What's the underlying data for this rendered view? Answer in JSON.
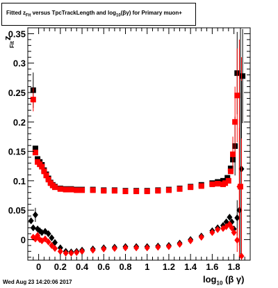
{
  "chart_data": {
    "type": "scatter",
    "title": {
      "prefix": "Fitted  z",
      "prefix_sub": "Fit",
      "middle": " versus TpcTrackLength and log",
      "middle_sub": "10",
      "suffix": "(βγ) for Primary muon+"
    },
    "xlabel": {
      "main": "log",
      "sub": "10",
      "rest": "(β γ)"
    },
    "ylabel": {
      "main": "z",
      "sub": "Fit"
    },
    "xlim": [
      -0.1,
      1.95
    ],
    "ylim": [
      -0.035,
      0.36
    ],
    "x_ticks": [
      "0",
      "0.2",
      "0.4",
      "0.6",
      "0.8",
      "1",
      "1.2",
      "1.4",
      "1.6",
      "1.8"
    ],
    "x_tick_values": [
      0,
      0.2,
      0.4,
      0.6,
      0.8,
      1.0,
      1.2,
      1.4,
      1.6,
      1.8
    ],
    "y_ticks": [
      "0",
      "0.05",
      "0.1",
      "0.15",
      "0.2",
      "0.25",
      "0.3",
      "0.35"
    ],
    "y_tick_values": [
      0,
      0.05,
      0.1,
      0.15,
      0.2,
      0.25,
      0.3,
      0.35
    ],
    "grid": false,
    "legend": "none",
    "series": [
      {
        "color": "#000000",
        "marker": "square",
        "points": [
          [
            -0.05,
            0.254
          ],
          [
            -0.03,
            0.155
          ],
          [
            -0.01,
            0.137
          ],
          [
            0.01,
            0.132
          ],
          [
            0.03,
            0.127
          ],
          [
            0.05,
            0.118
          ],
          [
            0.07,
            0.111
          ],
          [
            0.09,
            0.104
          ],
          [
            0.11,
            0.097
          ],
          [
            0.13,
            0.093
          ],
          [
            0.15,
            0.09
          ],
          [
            0.2,
            0.087
          ],
          [
            0.25,
            0.086
          ],
          [
            0.3,
            0.086
          ],
          [
            0.35,
            0.085
          ],
          [
            0.4,
            0.085
          ],
          [
            0.5,
            0.085
          ],
          [
            0.6,
            0.084
          ],
          [
            0.7,
            0.084
          ],
          [
            0.8,
            0.083
          ],
          [
            0.9,
            0.083
          ],
          [
            1.0,
            0.083
          ],
          [
            1.1,
            0.084
          ],
          [
            1.2,
            0.085
          ],
          [
            1.3,
            0.087
          ],
          [
            1.4,
            0.09
          ],
          [
            1.5,
            0.093
          ],
          [
            1.6,
            0.096
          ],
          [
            1.65,
            0.098
          ],
          [
            1.7,
            0.1
          ],
          [
            1.74,
            0.105
          ],
          [
            1.77,
            0.121
          ],
          [
            1.79,
            0.136
          ],
          [
            1.81,
            0.159
          ],
          [
            1.83,
            0.283
          ],
          [
            1.88,
            0.278
          ]
        ],
        "errors": [
          [
            -0.05,
            0.254,
            0.03
          ],
          [
            1.81,
            0.159,
            0.05
          ],
          [
            1.83,
            0.283,
            0.07
          ],
          [
            1.86,
            0.17,
            0.2
          ],
          [
            1.88,
            0.278,
            0.08
          ]
        ]
      },
      {
        "color": "#ff0000",
        "marker": "square",
        "points": [
          [
            -0.05,
            0.238
          ],
          [
            -0.03,
            0.148
          ],
          [
            -0.01,
            0.132
          ],
          [
            0.01,
            0.128
          ],
          [
            0.03,
            0.124
          ],
          [
            0.05,
            0.116
          ],
          [
            0.07,
            0.109
          ],
          [
            0.09,
            0.102
          ],
          [
            0.11,
            0.096
          ],
          [
            0.13,
            0.092
          ],
          [
            0.15,
            0.089
          ],
          [
            0.2,
            0.086
          ],
          [
            0.25,
            0.085
          ],
          [
            0.3,
            0.085
          ],
          [
            0.35,
            0.084
          ],
          [
            0.4,
            0.084
          ],
          [
            0.5,
            0.084
          ],
          [
            0.6,
            0.083
          ],
          [
            0.7,
            0.083
          ],
          [
            0.8,
            0.082
          ],
          [
            0.9,
            0.082
          ],
          [
            1.0,
            0.082
          ],
          [
            1.1,
            0.083
          ],
          [
            1.2,
            0.084
          ],
          [
            1.3,
            0.086
          ],
          [
            1.4,
            0.089
          ],
          [
            1.5,
            0.091
          ],
          [
            1.6,
            0.094
          ],
          [
            1.65,
            0.095
          ],
          [
            1.7,
            0.094
          ],
          [
            1.72,
            0.096
          ],
          [
            1.75,
            0.1
          ],
          [
            1.77,
            0.116
          ],
          [
            1.79,
            0.145
          ],
          [
            1.81,
            0.2
          ],
          [
            1.83,
            0.245
          ],
          [
            1.86,
            0.09
          ]
        ],
        "errors": [
          [
            -0.05,
            0.238,
            0.02
          ],
          [
            1.79,
            0.145,
            0.03
          ],
          [
            1.81,
            0.2,
            0.06
          ],
          [
            1.83,
            0.245,
            0.08
          ],
          [
            1.85,
            0.12,
            0.22
          ],
          [
            1.87,
            0.06,
            0.25
          ]
        ]
      },
      {
        "color": "#000000",
        "marker": "diamond",
        "points": [
          [
            -0.07,
            0.032
          ],
          [
            -0.05,
            0.02
          ],
          [
            -0.03,
            0.042
          ],
          [
            -0.01,
            0.018
          ],
          [
            0.01,
            0.015
          ],
          [
            0.03,
            0.012
          ],
          [
            0.06,
            0.014
          ],
          [
            0.09,
            0.01
          ],
          [
            0.12,
            0.003
          ],
          [
            0.15,
            -0.005
          ],
          [
            0.2,
            -0.014
          ],
          [
            0.25,
            -0.02
          ],
          [
            0.3,
            -0.021
          ],
          [
            0.35,
            -0.02
          ],
          [
            0.4,
            -0.018
          ],
          [
            0.5,
            -0.016
          ],
          [
            0.6,
            -0.014
          ],
          [
            0.7,
            -0.013
          ],
          [
            0.8,
            -0.012
          ],
          [
            0.9,
            -0.012
          ],
          [
            1.0,
            -0.012
          ],
          [
            1.1,
            -0.011
          ],
          [
            1.2,
            -0.01
          ],
          [
            1.3,
            -0.006
          ],
          [
            1.4,
            0.0
          ],
          [
            1.5,
            0.006
          ],
          [
            1.6,
            0.015
          ],
          [
            1.65,
            0.02
          ],
          [
            1.7,
            0.024
          ],
          [
            1.73,
            0.03
          ],
          [
            1.76,
            0.038
          ],
          [
            1.78,
            0.03
          ],
          [
            1.8,
            0.018
          ],
          [
            1.83,
            0.037
          ],
          [
            1.85,
            0.05
          ],
          [
            1.87,
            0.12
          ]
        ],
        "errors": [
          [
            -0.03,
            0.042,
            0.012
          ],
          [
            1.83,
            0.037,
            0.03
          ],
          [
            1.87,
            0.12,
            0.15
          ]
        ]
      },
      {
        "color": "#ff0000",
        "marker": "diamond",
        "points": [
          [
            -0.05,
            0.004
          ],
          [
            -0.03,
            0.001
          ],
          [
            -0.01,
            0.007
          ],
          [
            0.01,
            0.0
          ],
          [
            0.03,
            -0.002
          ],
          [
            0.06,
            0.001
          ],
          [
            0.09,
            -0.004
          ],
          [
            0.12,
            -0.01
          ],
          [
            0.15,
            -0.015
          ],
          [
            0.2,
            -0.02
          ],
          [
            0.25,
            -0.023
          ],
          [
            0.3,
            -0.023
          ],
          [
            0.35,
            -0.022
          ],
          [
            0.4,
            -0.02
          ],
          [
            0.5,
            -0.018
          ],
          [
            0.6,
            -0.016
          ],
          [
            0.7,
            -0.015
          ],
          [
            0.8,
            -0.014
          ],
          [
            0.9,
            -0.014
          ],
          [
            1.0,
            -0.014
          ],
          [
            1.1,
            -0.013
          ],
          [
            1.2,
            -0.012
          ],
          [
            1.3,
            -0.008
          ],
          [
            1.4,
            -0.002
          ],
          [
            1.5,
            0.004
          ],
          [
            1.6,
            0.012
          ],
          [
            1.65,
            0.017
          ],
          [
            1.7,
            0.019
          ],
          [
            1.73,
            0.022
          ],
          [
            1.76,
            0.026
          ],
          [
            1.78,
            0.02
          ],
          [
            1.8,
            0.012
          ],
          [
            1.83,
            -0.001
          ],
          [
            1.85,
            0.09
          ],
          [
            1.87,
            -0.028
          ]
        ],
        "errors": [
          [
            1.83,
            -0.001,
            0.02
          ],
          [
            1.85,
            0.09,
            0.1
          ],
          [
            1.87,
            -0.028,
            0.2
          ]
        ]
      }
    ]
  },
  "footer": {
    "timestamp": "Wed Aug 23 14:20:06 2017"
  }
}
